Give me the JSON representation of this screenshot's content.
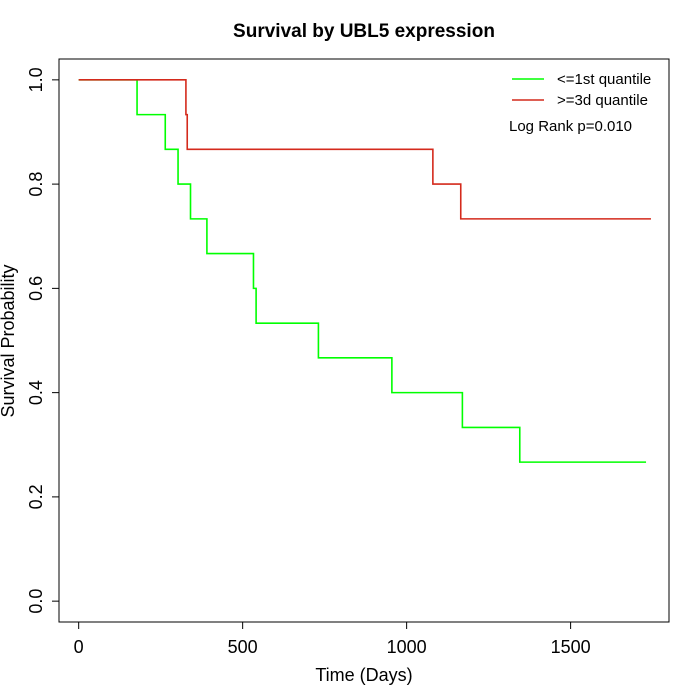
{
  "chart_data": {
    "type": "line",
    "title": "Survival by UBL5 expression",
    "xlabel": "Time (Days)",
    "ylabel": "Survival Probability",
    "xlim": [
      -60,
      1800
    ],
    "ylim": [
      -0.04,
      1.04
    ],
    "x_ticks": [
      0,
      500,
      1000,
      1500
    ],
    "y_ticks": [
      0.0,
      0.2,
      0.4,
      0.6,
      0.8,
      1.0
    ],
    "x_tick_labels": [
      "0",
      "500",
      "1000",
      "1500"
    ],
    "y_tick_labels": [
      "0.0",
      "0.2",
      "0.4",
      "0.6",
      "0.8",
      "1.0"
    ],
    "grid": false,
    "legend_position": "top-right",
    "annotation": "Log Rank p=0.010",
    "series": [
      {
        "name": "<=1st quantile",
        "color": "#00ff00",
        "step": true,
        "x": [
          0,
          178,
          264,
          303,
          341,
          391,
          533,
          541,
          731,
          955,
          1170,
          1345,
          1730
        ],
        "y": [
          1.0,
          0.9333,
          0.8667,
          0.8,
          0.7333,
          0.6667,
          0.6,
          0.5333,
          0.4667,
          0.4,
          0.3333,
          0.2667,
          0.2667
        ]
      },
      {
        "name": ">=3d quantile",
        "color": "#d42a1c",
        "step": true,
        "x": [
          0,
          327,
          331,
          1080,
          1165,
          1745
        ],
        "y": [
          1.0,
          0.9333,
          0.8667,
          0.8,
          0.7333,
          0.7333
        ]
      }
    ]
  }
}
